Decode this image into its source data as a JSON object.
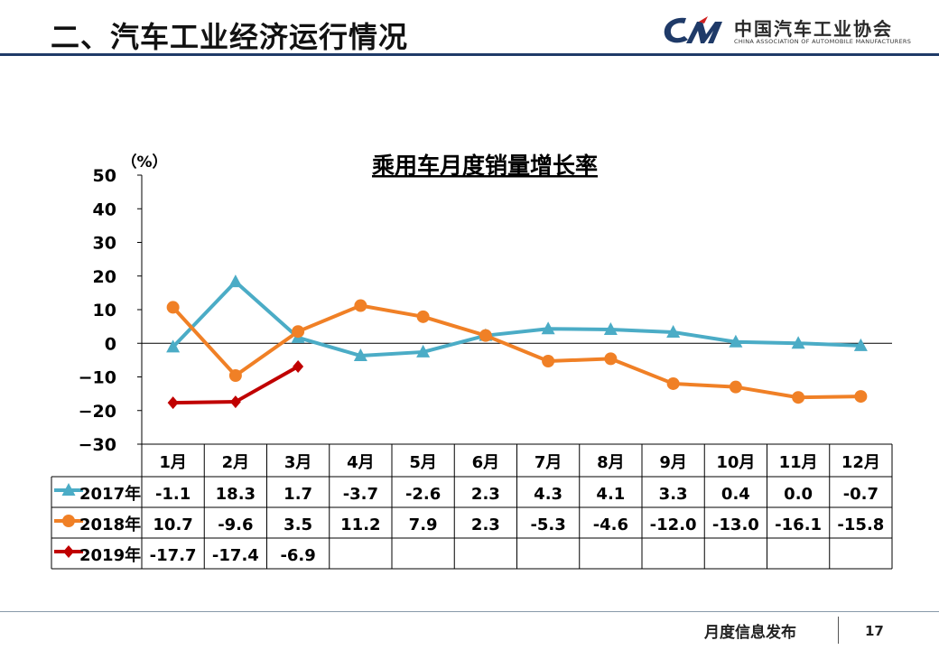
{
  "header": {
    "title": "二、汽车工业经济运行情况",
    "logo_cn": "中国汽车工业协会",
    "logo_en": "CHINA ASSOCIATION OF AUTOMOBILE MANUFACTURERS"
  },
  "footer": {
    "label": "月度信息发布",
    "page_number": "17"
  },
  "colors": {
    "2017": "#4bacc6",
    "2018": "#f08026",
    "2019": "#c00000",
    "header_rule": "#1f3a68"
  },
  "chart_data": {
    "type": "line",
    "title": "乘用车月度销量增长率",
    "ylabel": "（%）",
    "ylim": [
      -30,
      50
    ],
    "yticks": [
      50,
      40,
      30,
      20,
      10,
      0,
      -10,
      -20,
      -30
    ],
    "ytick_labels": [
      "50",
      "40",
      "30",
      "20",
      "10",
      "0",
      "−10",
      "−20",
      "−30"
    ],
    "grid": false,
    "legend": "data-table-rows",
    "categories": [
      "1月",
      "2月",
      "3月",
      "4月",
      "5月",
      "6月",
      "7月",
      "8月",
      "9月",
      "10月",
      "11月",
      "12月"
    ],
    "series": [
      {
        "name": "2017年",
        "marker": "triangle",
        "color": "#4bacc6",
        "values": [
          -1.1,
          18.3,
          1.7,
          -3.7,
          -2.6,
          2.3,
          4.3,
          4.1,
          3.3,
          0.4,
          0.0,
          -0.7
        ],
        "labels": [
          "-1.1",
          "18.3",
          "1.7",
          "-3.7",
          "-2.6",
          "2.3",
          "4.3",
          "4.1",
          "3.3",
          "0.4",
          "0.0",
          "-0.7"
        ]
      },
      {
        "name": "2018年",
        "marker": "circle",
        "color": "#f08026",
        "values": [
          10.7,
          -9.6,
          3.5,
          11.2,
          7.9,
          2.3,
          -5.3,
          -4.6,
          -12.0,
          -13.0,
          -16.1,
          -15.8
        ],
        "labels": [
          "10.7",
          "-9.6",
          "3.5",
          "11.2",
          "7.9",
          "2.3",
          "-5.3",
          "-4.6",
          "-12.0",
          "-13.0",
          "-16.1",
          "-15.8"
        ]
      },
      {
        "name": "2019年",
        "marker": "diamond",
        "color": "#c00000",
        "values": [
          -17.7,
          -17.4,
          -6.9,
          null,
          null,
          null,
          null,
          null,
          null,
          null,
          null,
          null
        ],
        "labels": [
          "-17.7",
          "-17.4",
          "-6.9",
          "",
          "",
          "",
          "",
          "",
          "",
          "",
          "",
          ""
        ]
      }
    ]
  }
}
